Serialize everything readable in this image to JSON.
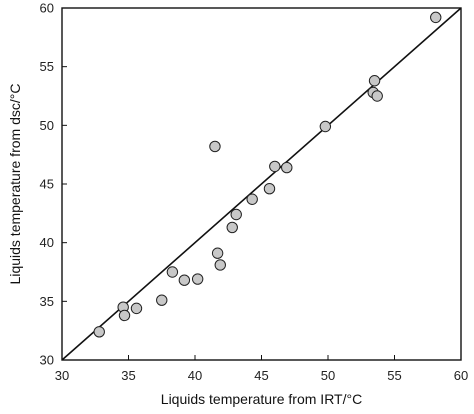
{
  "chart_data": {
    "type": "scatter",
    "title": "",
    "xlabel": "Liquids temperature from IRT/°C",
    "ylabel": "Liquids temperature from dsc/°C",
    "xlim": [
      30,
      60
    ],
    "ylim": [
      30,
      60
    ],
    "xticks": [
      30,
      35,
      40,
      45,
      50,
      55,
      60
    ],
    "yticks": [
      30,
      35,
      40,
      45,
      50,
      55,
      60
    ],
    "grid": false,
    "legend": "none",
    "colors": {
      "marker_fill": "#c8c8c8",
      "marker_stroke": "#222222",
      "line": "#111111",
      "frame": "#111111"
    },
    "reference_line": {
      "type": "identity",
      "from": [
        30,
        30
      ],
      "to": [
        60,
        60
      ]
    },
    "series": [
      {
        "points": [
          [
            32.8,
            32.4
          ],
          [
            34.6,
            34.5
          ],
          [
            34.7,
            33.8
          ],
          [
            35.6,
            34.4
          ],
          [
            37.5,
            35.1
          ],
          [
            38.3,
            37.5
          ],
          [
            39.2,
            36.8
          ],
          [
            40.2,
            36.9
          ],
          [
            41.5,
            48.2
          ],
          [
            41.7,
            39.1
          ],
          [
            41.9,
            38.1
          ],
          [
            42.8,
            41.3
          ],
          [
            43.1,
            42.4
          ],
          [
            44.3,
            43.7
          ],
          [
            45.6,
            44.6
          ],
          [
            46.0,
            46.5
          ],
          [
            46.9,
            46.4
          ],
          [
            49.8,
            49.9
          ],
          [
            53.4,
            52.8
          ],
          [
            53.5,
            53.8
          ],
          [
            53.7,
            52.5
          ],
          [
            58.1,
            59.2
          ]
        ]
      }
    ]
  }
}
